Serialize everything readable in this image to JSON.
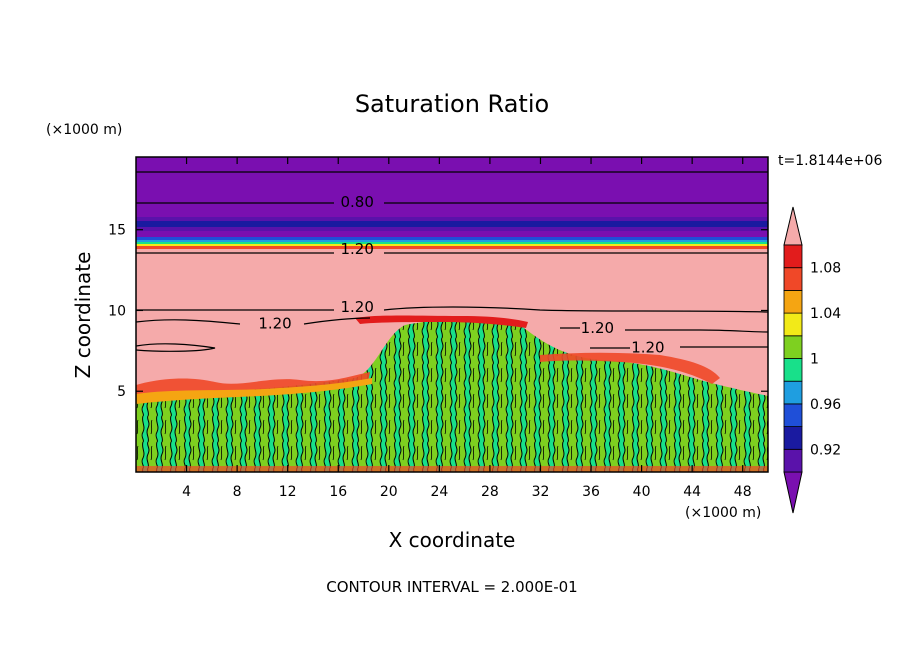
{
  "chart_data": {
    "type": "heatmap",
    "title": "Saturation Ratio",
    "xlabel": "X coordinate",
    "ylabel": "Z coordinate",
    "x_unit": "(×1000 m)",
    "y_unit": "(×1000 m)",
    "xlim": [
      0,
      50
    ],
    "ylim": [
      0,
      19.5
    ],
    "x_ticks": [
      4,
      8,
      12,
      16,
      20,
      24,
      28,
      32,
      36,
      40,
      44,
      48
    ],
    "y_ticks": [
      5,
      10,
      15
    ],
    "time_label": "t=1.8144e+06",
    "contour_interval_label": "CONTOUR INTERVAL = 2.000E-01",
    "contour_labels": [
      {
        "text": "0.80",
        "x": 17.5,
        "z": 16.7
      },
      {
        "text": "1.20",
        "x": 17.5,
        "z": 13.8
      },
      {
        "text": "1.20",
        "x": 17.5,
        "z": 10.2
      },
      {
        "text": "1.20",
        "x": 11.0,
        "z": 9.2
      },
      {
        "text": "1.20",
        "x": 36.5,
        "z": 8.9
      },
      {
        "text": "1.20",
        "x": 40.5,
        "z": 7.7
      }
    ],
    "colorbar": {
      "levels": [
        0.9,
        0.92,
        0.94,
        0.96,
        0.98,
        1.0,
        1.02,
        1.04,
        1.06,
        1.08,
        1.1
      ],
      "tick_labels": [
        "0.92",
        "0.96",
        "1",
        "1.04",
        "1.08"
      ],
      "extend": "both"
    },
    "colors": {
      "below": "#7a0fb0",
      "bands": [
        "#5a12aa",
        "#1a1aa0",
        "#1f4fd8",
        "#1f9ee0",
        "#18e08a",
        "#7ed020",
        "#f2ea18",
        "#f5a512",
        "#f04828",
        "#e21c1c"
      ],
      "above": "#f5aaaa"
    },
    "regions": {
      "upper_dry_level": 0.8,
      "mid_supersaturated_level": 1.2,
      "lower_layer_range": [
        0.96,
        1.02
      ]
    }
  }
}
